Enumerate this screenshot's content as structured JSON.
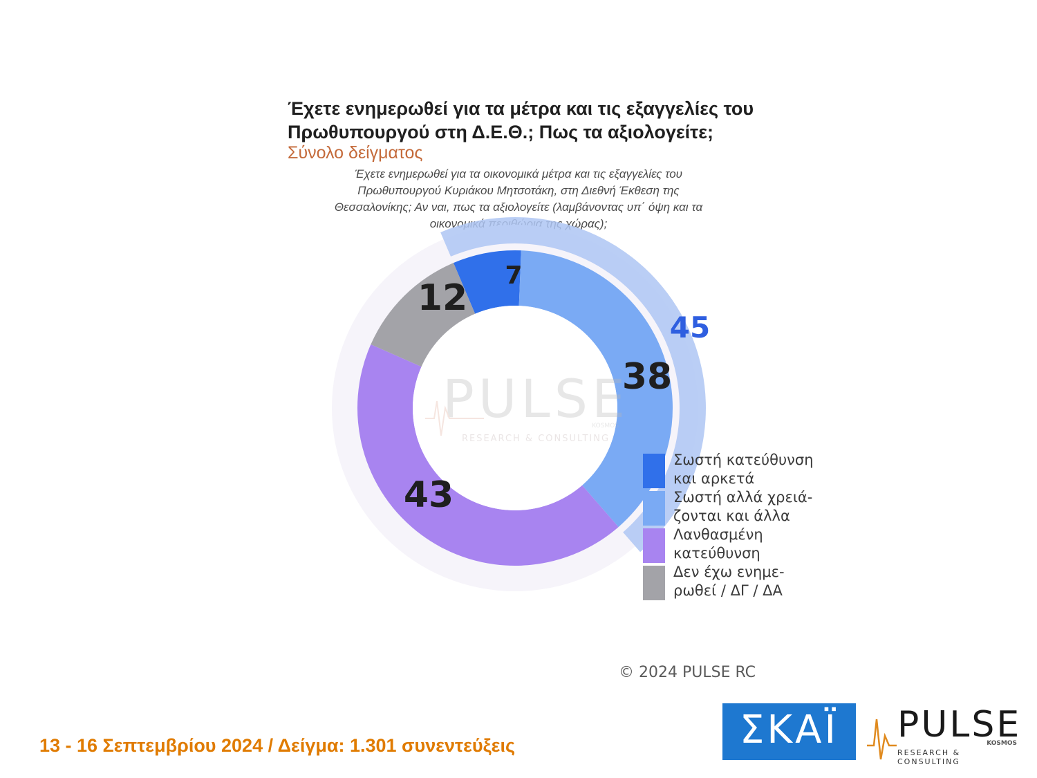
{
  "chart_data": {
    "type": "pie",
    "title": "Έχετε ενημερωθεί για τα μέτρα και τις εξαγγελίες του Πρωθυπουργού στη Δ.Ε.Θ.; Πως τα αξιολογείτε;",
    "subtitle": "Σύνολο δείγματος",
    "question": "Έχετε ενημερωθεί για τα οικονομικά μέτρα και τις εξαγγελίες του Πρωθυπουργού Κυριάκου Μητσοτάκη, στη Διεθνή Έκθεση της Θεσσαλονίκης; Αν ναι, πως τα αξιολογείτε (λαμβάνοντας υπ΄ όψη και τα οικονομικά περιθώρια της χώρας);",
    "series": [
      {
        "name": "Σωστή κατεύθυνση και αρκετά",
        "value": 7,
        "color": "#3070ea"
      },
      {
        "name": "Σωστή αλλά χρειάζονται και άλλα",
        "value": 38,
        "color": "#7aaaf4"
      },
      {
        "name": "Λανθασμένη κατεύθυνση",
        "value": 43,
        "color": "#a884f0"
      },
      {
        "name": "Δεν έχω ενημερωθεί / ΔΓ / ΔΑ",
        "value": 12,
        "color": "#a3a3a8"
      }
    ],
    "combined_total": {
      "value": 45,
      "color": "#2f5fe0"
    },
    "legend_labels": [
      [
        "Σωστή κατεύθυνση",
        "και αρκετά"
      ],
      [
        "Σωστή αλλά χρειά-",
        "ζονται και άλλα"
      ],
      [
        "Λανθασμένη",
        "κατεύθυνση"
      ],
      [
        "Δεν έχω ενημε-",
        "ρωθεί / ΔΓ / ΔΑ"
      ]
    ],
    "legend_position": "right"
  },
  "watermark": {
    "brand": "PULSE",
    "tagline": "RESEARCH & CONSULTING",
    "sub": "KOSMOS"
  },
  "copyright": "© 2024 PULSE RC",
  "footer": "13 - 16 Σεπτεμβρίου 2024  /  Δείγμα:  1.301 συνεντεύξεις",
  "logos": {
    "skai": "ΣΚΑΪ",
    "pulse": "PULSE",
    "pulse_sub": "KOSMOS",
    "pulse_tagline": "RESEARCH & CONSULTING"
  }
}
